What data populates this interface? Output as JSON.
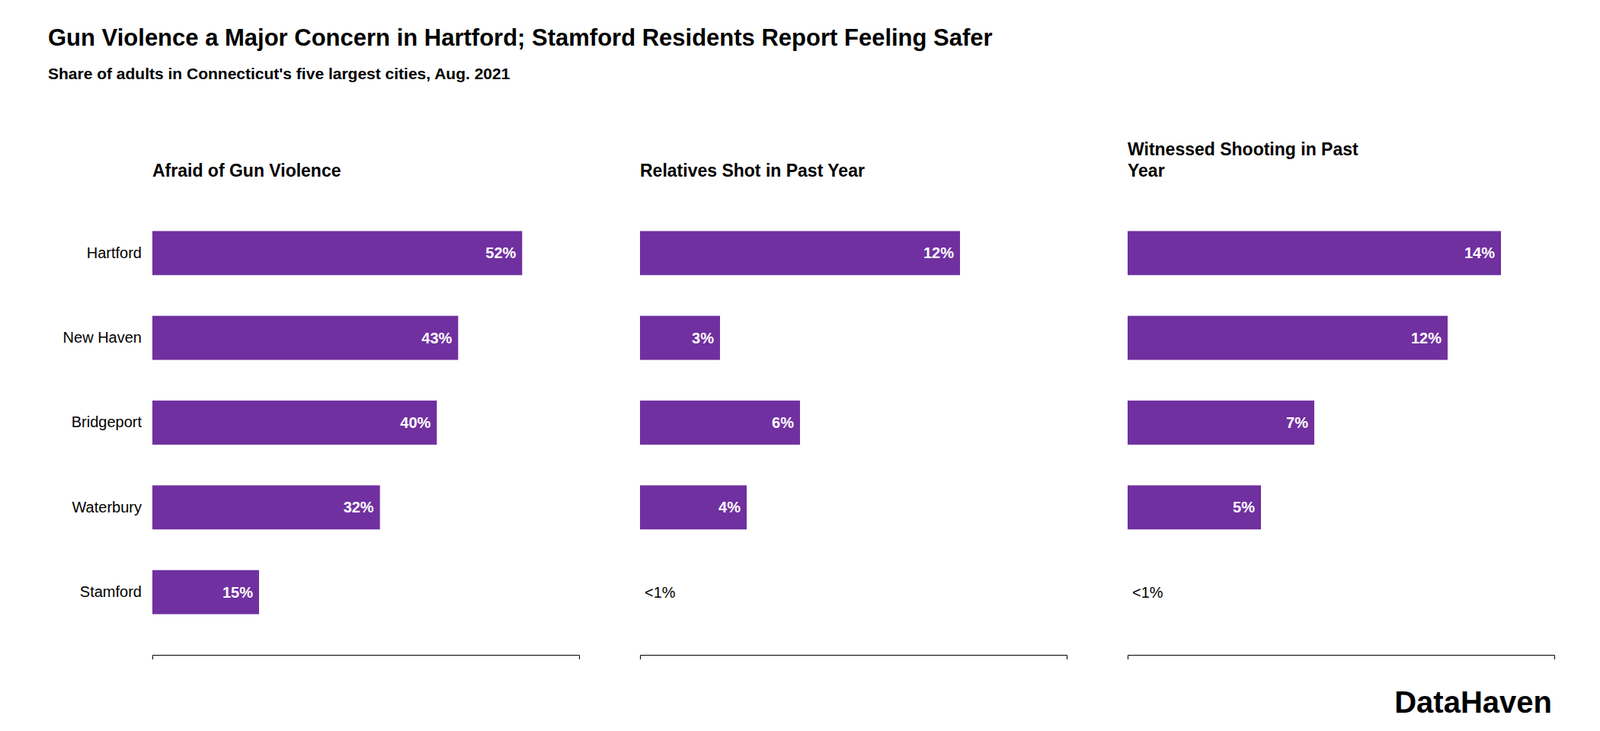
{
  "title": "Gun Violence a Major Concern in Hartford; Stamford Residents Report Feeling Safer",
  "subtitle": "Share of adults in Connecticut's five largest cities, Aug. 2021",
  "annotations": [
    "DataHaven"
  ],
  "chart_data": [
    {
      "type": "bar",
      "orientation": "horizontal",
      "title": "Afraid of Gun Violence",
      "categories": [
        "Hartford",
        "New Haven",
        "Bridgeport",
        "Waterbury",
        "Stamford"
      ],
      "values": [
        52,
        43,
        40,
        32,
        15
      ],
      "value_labels": [
        "52%",
        "43%",
        "40%",
        "32%",
        "15%"
      ],
      "color": "#7030a0",
      "xlim": [
        0,
        60
      ],
      "data_labels": true,
      "grid": false,
      "tick_labels": "y"
    },
    {
      "type": "bar",
      "orientation": "horizontal",
      "title": "Relatives Shot in Past Year",
      "categories": [
        "Hartford",
        "New Haven",
        "Bridgeport",
        "Waterbury",
        "Stamford"
      ],
      "values": [
        12,
        3,
        6,
        4,
        0
      ],
      "value_labels": [
        "12%",
        "3%",
        "6%",
        "4%",
        "<1%"
      ],
      "color": "#7030a0",
      "xlim": [
        0,
        16
      ],
      "data_labels": true,
      "grid": false,
      "tick_labels": false
    },
    {
      "type": "bar",
      "orientation": "horizontal",
      "title": "Witnessed Shooting in Past\nYear",
      "categories": [
        "Hartford",
        "New Haven",
        "Bridgeport",
        "Waterbury",
        "Stamford"
      ],
      "values": [
        14,
        12,
        7,
        5,
        0
      ],
      "value_labels": [
        "14%",
        "12%",
        "7%",
        "5%",
        "<1%"
      ],
      "color": "#7030a0",
      "xlim": [
        0,
        16
      ],
      "data_labels": true,
      "grid": false,
      "tick_labels": false
    }
  ]
}
